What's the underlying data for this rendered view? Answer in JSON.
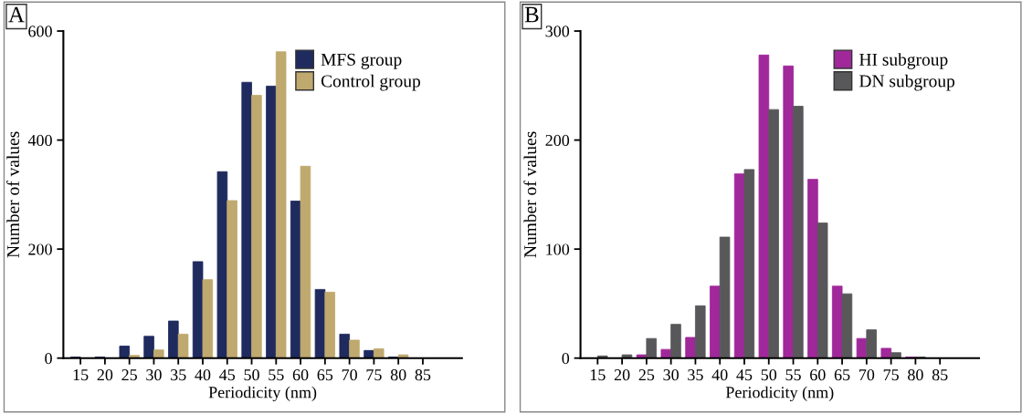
{
  "chart_data": [
    {
      "type": "bar",
      "annotations": [
        "A"
      ],
      "xlabel": "Periodicity (nm)",
      "ylabel": "Number of values",
      "categories": [
        "15",
        "20",
        "25",
        "30",
        "35",
        "40",
        "45",
        "50",
        "55",
        "60",
        "65",
        "70",
        "75",
        "80",
        "85"
      ],
      "series": [
        {
          "name": "MFS group",
          "color": "#1f2a5e",
          "values": [
            2,
            2,
            22,
            40,
            68,
            177,
            342,
            506,
            499,
            288,
            126,
            44,
            14,
            2,
            0
          ]
        },
        {
          "name": "Control group",
          "color": "#bfa96e",
          "values": [
            0,
            0,
            5,
            15,
            44,
            144,
            289,
            482,
            562,
            352,
            121,
            33,
            17,
            6,
            0
          ]
        }
      ],
      "ylim": [
        0,
        600
      ],
      "yticks": [
        0,
        200,
        400,
        600
      ],
      "grid": false,
      "legend": "top"
    },
    {
      "type": "bar",
      "annotations": [
        "B"
      ],
      "xlabel": "Periodicity (nm)",
      "ylabel": "Number of values",
      "categories": [
        "15",
        "20",
        "25",
        "30",
        "35",
        "40",
        "45",
        "50",
        "55",
        "60",
        "65",
        "70",
        "75",
        "80",
        "85"
      ],
      "series": [
        {
          "name": "HI subgroup",
          "color": "#a0289a",
          "values": [
            0,
            0,
            3,
            8,
            19,
            66,
            169,
            278,
            268,
            164,
            66,
            18,
            9,
            1,
            0
          ]
        },
        {
          "name": "DN subgroup",
          "color": "#58585a",
          "values": [
            2,
            3,
            18,
            31,
            48,
            111,
            173,
            228,
            231,
            124,
            59,
            26,
            5,
            1,
            0
          ]
        }
      ],
      "ylim": [
        0,
        300
      ],
      "yticks": [
        0,
        100,
        200,
        300
      ],
      "grid": false,
      "legend": "top right"
    }
  ]
}
